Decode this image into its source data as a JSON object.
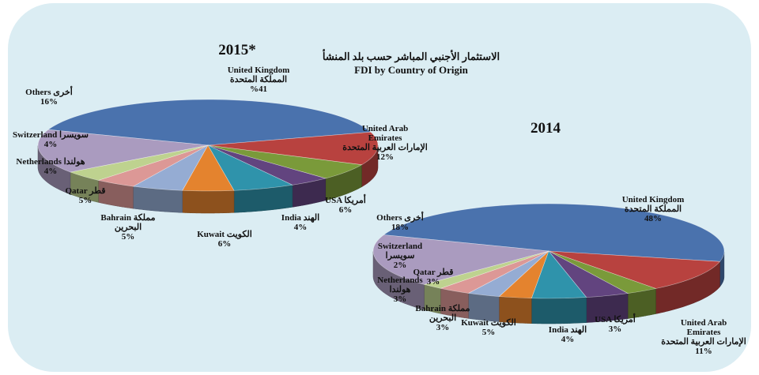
{
  "title_ar": "الاستثمار الأجنبي المباشر حسب بلد المنشأ",
  "title_en": "FDI by Country of Origin",
  "chart_data": [
    {
      "type": "pie",
      "title": "2015*",
      "unit": "%",
      "slices": [
        {
          "en": "United Kingdom",
          "ar": "المملكة المتحدة",
          "value": 41,
          "value_label": "%41",
          "color": "#4a72ad"
        },
        {
          "en": "United Arab Emirates",
          "ar": "الإمارات العربية المتحدة",
          "value": 12,
          "value_label": "12%",
          "color": "#b8423f"
        },
        {
          "en": "USA",
          "ar": "أمريكا",
          "value": 6,
          "value_label": "6%",
          "color": "#7a9a3a"
        },
        {
          "en": "India",
          "ar": "الهند",
          "value": 4,
          "value_label": "4%",
          "color": "#62447f"
        },
        {
          "en": "Kuwait",
          "ar": "الكويت",
          "value": 6,
          "value_label": "6%",
          "color": "#2f93ab"
        },
        {
          "en": "Bahrain",
          "ar": "مملكة البحرين",
          "value": 5,
          "value_label": "5%",
          "color": "#e4832e"
        },
        {
          "en": "Qatar",
          "ar": "قطر",
          "value": 5,
          "value_label": "5%",
          "color": "#95acd3"
        },
        {
          "en": "Netherlands",
          "ar": "هولندا",
          "value": 4,
          "value_label": "4%",
          "color": "#dc9896"
        },
        {
          "en": "Switzerland",
          "ar": "سويسرا",
          "value": 4,
          "value_label": "4%",
          "color": "#bed28f"
        },
        {
          "en": "Others",
          "ar": "أخرى",
          "value": 16,
          "value_label": "16%",
          "color": "#aa9bbf"
        }
      ]
    },
    {
      "type": "pie",
      "title": "2014",
      "unit": "%",
      "slices": [
        {
          "en": "United Kingdom",
          "ar": "المملكة المتحدة",
          "value": 48,
          "value_label": "48%",
          "color": "#4a72ad"
        },
        {
          "en": "United Arab Emirates",
          "ar": "الإمارات العربية المتحدة",
          "value": 11,
          "value_label": "11%",
          "color": "#b8423f"
        },
        {
          "en": "USA",
          "ar": "أمريكا",
          "value": 3,
          "value_label": "3%",
          "color": "#7a9a3a"
        },
        {
          "en": "India",
          "ar": "الهند",
          "value": 4,
          "value_label": "4%",
          "color": "#62447f"
        },
        {
          "en": "Kuwait",
          "ar": "الكويت",
          "value": 5,
          "value_label": "5%",
          "color": "#2f93ab"
        },
        {
          "en": "Bahrain",
          "ar": "مملكة البحرين",
          "value": 3,
          "value_label": "3%",
          "color": "#e4832e"
        },
        {
          "en": "Qatar",
          "ar": "قطر",
          "value": 3,
          "value_label": "3%",
          "color": "#95acd3"
        },
        {
          "en": "Netherlands",
          "ar": "هولندا",
          "value": 3,
          "value_label": "3%",
          "color": "#dc9896"
        },
        {
          "en": "Switzerland",
          "ar": "سويسرا",
          "value": 2,
          "value_label": "2%",
          "color": "#bed28f"
        },
        {
          "en": "Others",
          "ar": "أخرى",
          "value": 18,
          "value_label": "18%",
          "color": "#aa9bbf"
        }
      ]
    }
  ]
}
